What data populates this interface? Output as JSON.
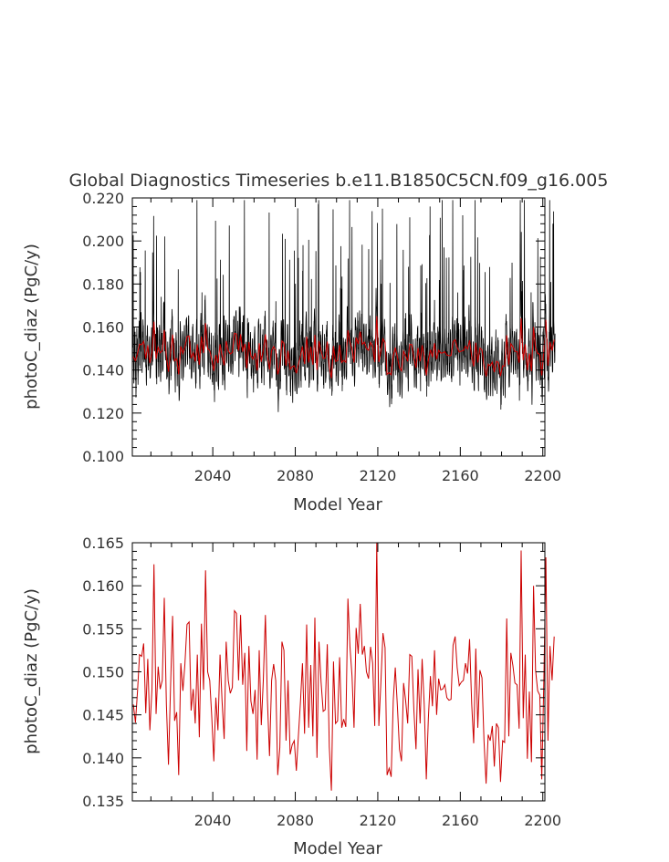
{
  "chart_data": [
    {
      "type": "line",
      "title": "Global Diagnostics Timeseries b.e11.B1850C5CN.f09_g16.005",
      "xlabel": "Model Year",
      "ylabel": "photoC_diaz (PgC/y)",
      "xlim": [
        2001,
        2201
      ],
      "ylim": [
        0.1,
        0.22
      ],
      "xticks": [
        "2040",
        "2080",
        "2120",
        "2160",
        "2200"
      ],
      "yticks": [
        "0.100",
        "0.120",
        "0.140",
        "0.160",
        "0.180",
        "0.200",
        "0.220"
      ],
      "grid": false,
      "series_colors": [
        "#000000",
        "#cc0000"
      ],
      "series": [
        {
          "resolution": "monthly",
          "x": [
            2001,
            2201
          ]
        },
        {
          "resolution": "annual",
          "x": [
            2001,
            2201
          ]
        }
      ]
    },
    {
      "type": "line",
      "title": "",
      "xlabel": "Model Year",
      "ylabel": "photoC_diaz (PgC/y)",
      "xlim": [
        2001,
        2201
      ],
      "ylim": [
        0.135,
        0.165
      ],
      "xticks": [
        "2040",
        "2080",
        "2120",
        "2160",
        "2200"
      ],
      "yticks": [
        "0.135",
        "0.140",
        "0.145",
        "0.150",
        "0.155",
        "0.160",
        "0.165"
      ],
      "grid": false,
      "series_colors": [
        "#cc0000"
      ],
      "series": [
        {
          "resolution": "annual",
          "x_start": 2001,
          "x_step": 1,
          "values": [
            0.1462,
            0.1441,
            0.1478,
            0.152,
            0.1518,
            0.1533,
            0.1452,
            0.1515,
            0.1432,
            0.148,
            0.1625,
            0.1451,
            0.1506,
            0.148,
            0.149,
            0.1586,
            0.1462,
            0.1392,
            0.148,
            0.1565,
            0.1443,
            0.1453,
            0.138,
            0.151,
            0.1478,
            0.1509,
            0.1555,
            0.1558,
            0.1455,
            0.148,
            0.144,
            0.152,
            0.1424,
            0.1556,
            0.1479,
            0.1618,
            0.15,
            0.149,
            0.1448,
            0.1396,
            0.147,
            0.1432,
            0.152,
            0.1466,
            0.1422,
            0.1535,
            0.149,
            0.1475,
            0.1482,
            0.1571,
            0.1568,
            0.149,
            0.1566,
            0.1485,
            0.1522,
            0.1408,
            0.153,
            0.1466,
            0.1451,
            0.1479,
            0.1398,
            0.1525,
            0.1438,
            0.149,
            0.1566,
            0.1467,
            0.1402,
            0.149,
            0.1509,
            0.149,
            0.138,
            0.1412,
            0.1535,
            0.1525,
            0.142,
            0.149,
            0.1404,
            0.1415,
            0.142,
            0.1385,
            0.1425,
            0.1465,
            0.151,
            0.1428,
            0.1555,
            0.1435,
            0.1508,
            0.1425,
            0.1563,
            0.14,
            0.1535,
            0.1488,
            0.1454,
            0.1456,
            0.1532,
            0.1413,
            0.1362,
            0.1512,
            0.144,
            0.1443,
            0.1517,
            0.1435,
            0.1445,
            0.1436,
            0.1585,
            0.153,
            0.1495,
            0.1435,
            0.1551,
            0.1521,
            0.1579,
            0.152,
            0.153,
            0.15,
            0.1492,
            0.1529,
            0.151,
            0.1437,
            0.165,
            0.1437,
            0.1487,
            0.1545,
            0.1528,
            0.138,
            0.1388,
            0.1378,
            0.1467,
            0.1505,
            0.146,
            0.141,
            0.1396,
            0.1487,
            0.1467,
            0.144,
            0.152,
            0.1518,
            0.1455,
            0.141,
            0.1503,
            0.144,
            0.1515,
            0.1462,
            0.1375,
            0.1445,
            0.1495,
            0.146,
            0.1525,
            0.145,
            0.1492,
            0.1479,
            0.148,
            0.1485,
            0.147,
            0.1467,
            0.1468,
            0.1531,
            0.1541,
            0.1505,
            0.1484,
            0.1488,
            0.149,
            0.151,
            0.1498,
            0.1538,
            0.1463,
            0.1417,
            0.1527,
            0.1435,
            0.1502,
            0.1493,
            0.142,
            0.137,
            0.1427,
            0.142,
            0.1437,
            0.139,
            0.144,
            0.1435,
            0.1372,
            0.142,
            0.1418,
            0.1562,
            0.1425,
            0.1522,
            0.1507,
            0.1487,
            0.1485,
            0.1434,
            0.1641,
            0.1446,
            0.152,
            0.1399,
            0.1477,
            0.1395,
            0.16,
            0.1502,
            0.1478,
            0.1473,
            0.1375,
            0.1492,
            0.1633,
            0.142,
            0.153,
            0.149,
            0.1541
          ]
        }
      ]
    }
  ]
}
